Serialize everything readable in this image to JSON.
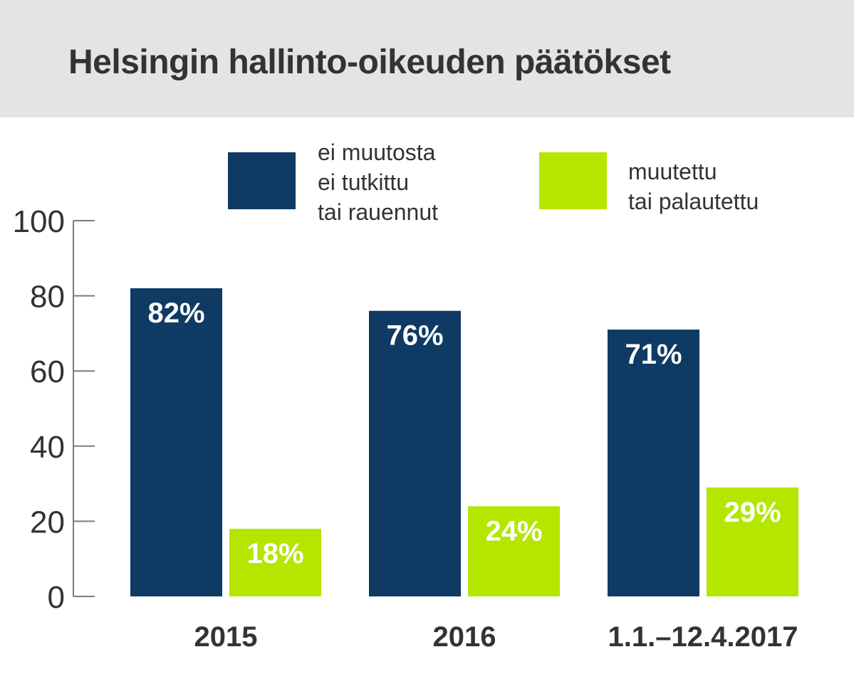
{
  "title": "Helsingin hallinto-oikeuden päätökset",
  "legend": [
    {
      "label": "ei muutosta\nei tutkittu\ntai rauennut",
      "color": "#0e3a63"
    },
    {
      "label": "muutettu\ntai palautettu",
      "color": "#b4e600"
    }
  ],
  "chart_data": {
    "type": "bar",
    "title": "Helsingin hallinto-oikeuden päätökset",
    "categories": [
      "2015",
      "2016",
      "1.1.–12.4.2017"
    ],
    "series": [
      {
        "name": "ei muutosta ei tutkittu tai rauennut",
        "values": [
          82,
          76,
          71
        ],
        "labels": [
          "82%",
          "76%",
          "71%"
        ],
        "color": "#0e3a63"
      },
      {
        "name": "muutettu tai palautettu",
        "values": [
          18,
          24,
          29
        ],
        "labels": [
          "18%",
          "24%",
          "29%"
        ],
        "color": "#b4e600"
      }
    ],
    "ylim": [
      0,
      100
    ],
    "yticks": [
      0,
      20,
      40,
      60,
      80,
      100
    ],
    "xlabel": "",
    "ylabel": "",
    "grid": false,
    "legend_position": "top"
  }
}
